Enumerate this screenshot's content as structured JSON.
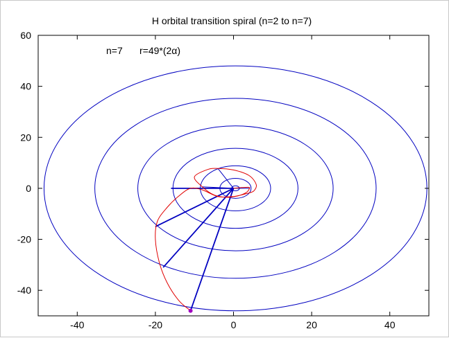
{
  "chart_data": {
    "type": "line",
    "title": "H orbital transition spiral (n=2 to n=7)",
    "annotation": {
      "n_label": "n=7",
      "r_label": "r=49*(2α)"
    },
    "xlim": [
      -50,
      50
    ],
    "ylim": [
      -50,
      60
    ],
    "xticks": [
      -40,
      -20,
      0,
      20,
      40
    ],
    "yticks": [
      -40,
      -20,
      0,
      20,
      40,
      60
    ],
    "grid": false,
    "orbits": {
      "n": [
        1,
        2,
        3,
        4,
        5,
        6,
        7
      ],
      "radius": [
        1,
        4,
        9,
        16,
        25,
        36,
        49
      ],
      "color": "#0000c0",
      "ellipse_center_x": 0.5,
      "y_scale": 0.98
    },
    "spiral": {
      "color": "#e00000",
      "points": [
        [
          0,
          0
        ],
        [
          2,
          0.3
        ],
        [
          3.8,
          0.4
        ],
        [
          4.1,
          0
        ],
        [
          3.3,
          -1.6
        ],
        [
          1,
          -3
        ],
        [
          -2,
          -3.5
        ],
        [
          -5,
          -2.6
        ],
        [
          -8,
          0.6
        ],
        [
          -10,
          4.5
        ],
        [
          -6.6,
          7.4
        ],
        [
          -4,
          7.8
        ],
        [
          0,
          7.2
        ],
        [
          4,
          5
        ],
        [
          5.8,
          1.5
        ],
        [
          5.2,
          -1
        ],
        [
          3.5,
          -2
        ],
        [
          0,
          -3.2
        ],
        [
          -4,
          -3.2
        ],
        [
          -8,
          -0.6
        ],
        [
          -11,
          0
        ],
        [
          -14,
          -3
        ],
        [
          -17,
          -7.5
        ],
        [
          -19.5,
          -13
        ],
        [
          -20,
          -20
        ],
        [
          -19,
          -29
        ],
        [
          -17,
          -37
        ],
        [
          -14,
          -44
        ],
        [
          -11,
          -48
        ]
      ]
    },
    "radial_lines": {
      "color": "#0000c0",
      "targets": [
        [
          -16,
          0
        ],
        [
          -20,
          -15
        ],
        [
          -18,
          -31
        ],
        [
          -11,
          -48
        ]
      ]
    },
    "spokes": {
      "color": "#0000c0",
      "targets": [
        [
          -4,
          7.8
        ],
        [
          -8,
          0.6
        ],
        [
          4.1,
          0
        ],
        [
          -2,
          -3.5
        ]
      ]
    },
    "marker": {
      "x": -11,
      "y": -48,
      "color": "#a000c0"
    }
  }
}
